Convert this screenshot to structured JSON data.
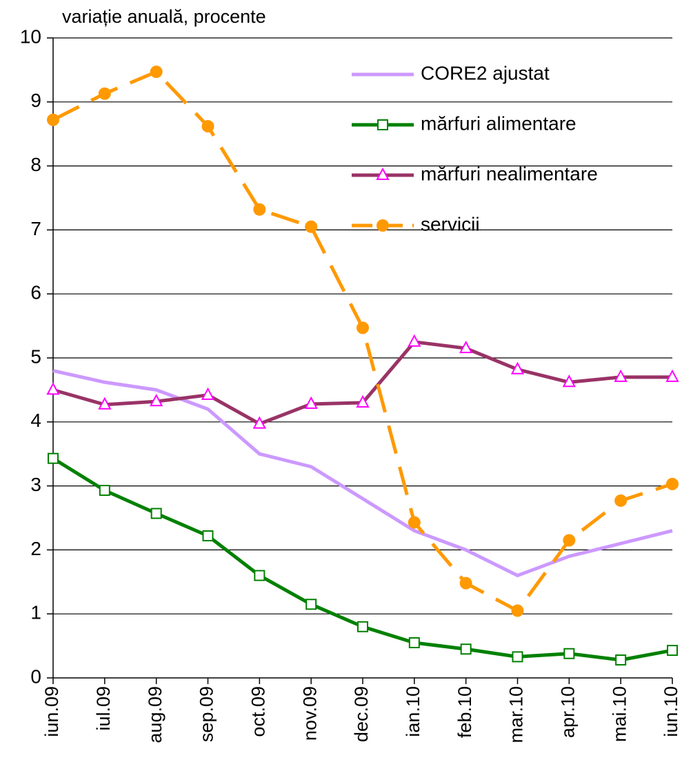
{
  "chart_data": {
    "type": "line",
    "y_axis_label": "variație anuală, procente",
    "categories": [
      "iun.09",
      "iul.09",
      "aug.09",
      "sep.09",
      "oct.09",
      "nov.09",
      "dec.09",
      "ian.10",
      "feb.10",
      "mar.10",
      "apr.10",
      "mai.10",
      "iun.10"
    ],
    "series": [
      {
        "name": "CORE2 ajustat",
        "color": "#cc99ff",
        "marker": "none",
        "dashed": false,
        "values": [
          4.8,
          4.62,
          4.5,
          4.2,
          3.5,
          3.3,
          2.8,
          2.3,
          2.0,
          1.6,
          1.9,
          2.1,
          2.3
        ]
      },
      {
        "name": "mărfuri alimentare",
        "color": "#008000",
        "marker": "square",
        "marker_color": "#008000",
        "dashed": false,
        "values": [
          3.43,
          2.93,
          2.57,
          2.22,
          1.6,
          1.15,
          0.8,
          0.55,
          0.45,
          0.33,
          0.38,
          0.28,
          0.43
        ]
      },
      {
        "name": "mărfuri nealimentare",
        "color": "#993366",
        "marker": "triangle",
        "marker_color": "#ff00ff",
        "dashed": false,
        "values": [
          4.5,
          4.27,
          4.32,
          4.42,
          3.97,
          4.28,
          4.3,
          5.25,
          5.15,
          4.82,
          4.62,
          4.7,
          4.7
        ]
      },
      {
        "name": "servicii",
        "color": "#ff9900",
        "marker": "circle",
        "marker_color": "#ff9900",
        "dashed": true,
        "values": [
          8.72,
          9.13,
          9.47,
          8.62,
          7.32,
          7.05,
          5.47,
          2.43,
          1.48,
          1.05,
          2.15,
          2.77,
          3.03
        ]
      }
    ],
    "ylim": [
      0,
      10
    ],
    "yticks": [
      0,
      1,
      2,
      3,
      4,
      5,
      6,
      7,
      8,
      9,
      10
    ],
    "grid": true
  }
}
